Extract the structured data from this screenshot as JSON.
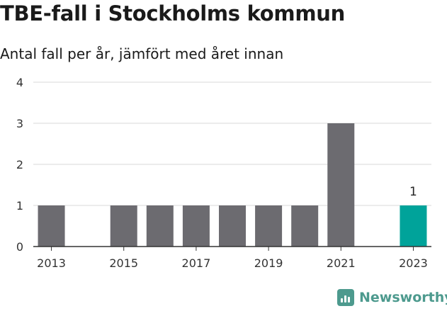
{
  "title": "TBE-fall i Stockholms kommun",
  "subtitle": "Antal fall per år, jämfört med året innan",
  "brand": {
    "name": "Newsworthy",
    "icon": "newsworthy-logo-icon",
    "color": "#4d9a8e"
  },
  "chart_data": {
    "type": "bar",
    "title": "TBE-fall i Stockholms kommun",
    "subtitle": "Antal fall per år, jämfört med året innan",
    "xlabel": "",
    "ylabel": "",
    "categories": [
      "2013",
      "2014",
      "2015",
      "2016",
      "2017",
      "2018",
      "2019",
      "2020",
      "2021",
      "2022",
      "2023"
    ],
    "values": [
      1,
      0,
      1,
      1,
      1,
      1,
      1,
      1,
      3,
      0,
      1
    ],
    "x_tick_labels": [
      "2013",
      "2015",
      "2017",
      "2019",
      "2021",
      "2023"
    ],
    "y_ticks": [
      0,
      1,
      2,
      3,
      4
    ],
    "ylim": [
      0,
      4
    ],
    "grid": true,
    "highlight_category": "2023",
    "data_labels": [
      {
        "category": "2023",
        "value": 1
      }
    ],
    "colors": {
      "bar": "#6c6b70",
      "highlight": "#00a39a",
      "grid": "#d9d9d9",
      "axis": "#333333"
    }
  }
}
